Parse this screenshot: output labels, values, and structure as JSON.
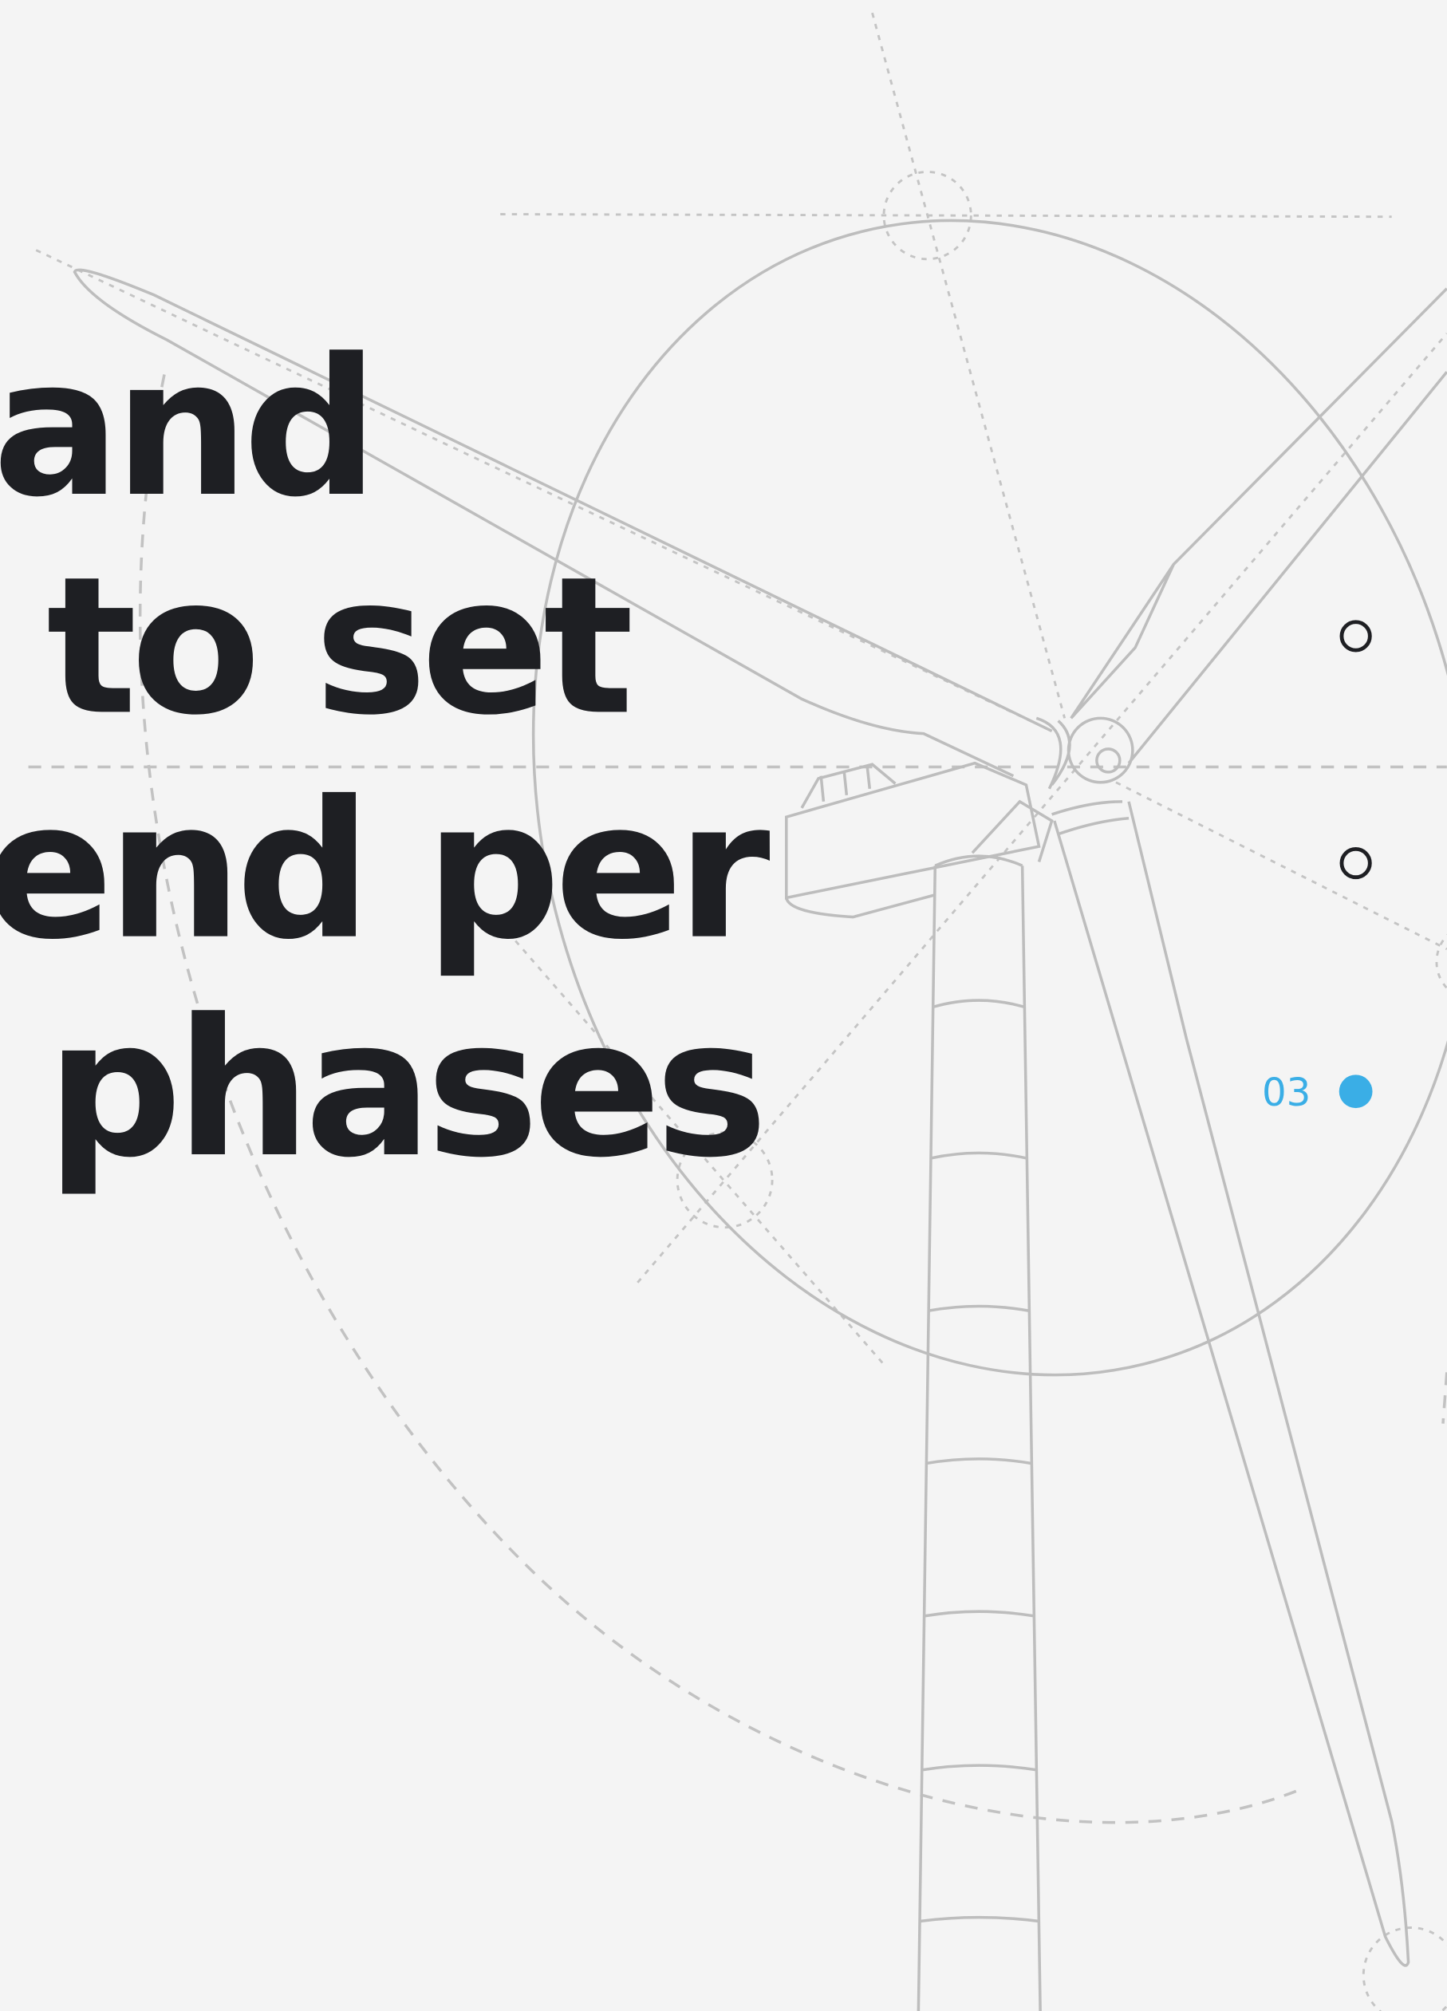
{
  "headline": {
    "lines": [
      "and",
      "to set",
      "end per",
      "phases"
    ]
  },
  "pagination": {
    "active_label": "03"
  }
}
